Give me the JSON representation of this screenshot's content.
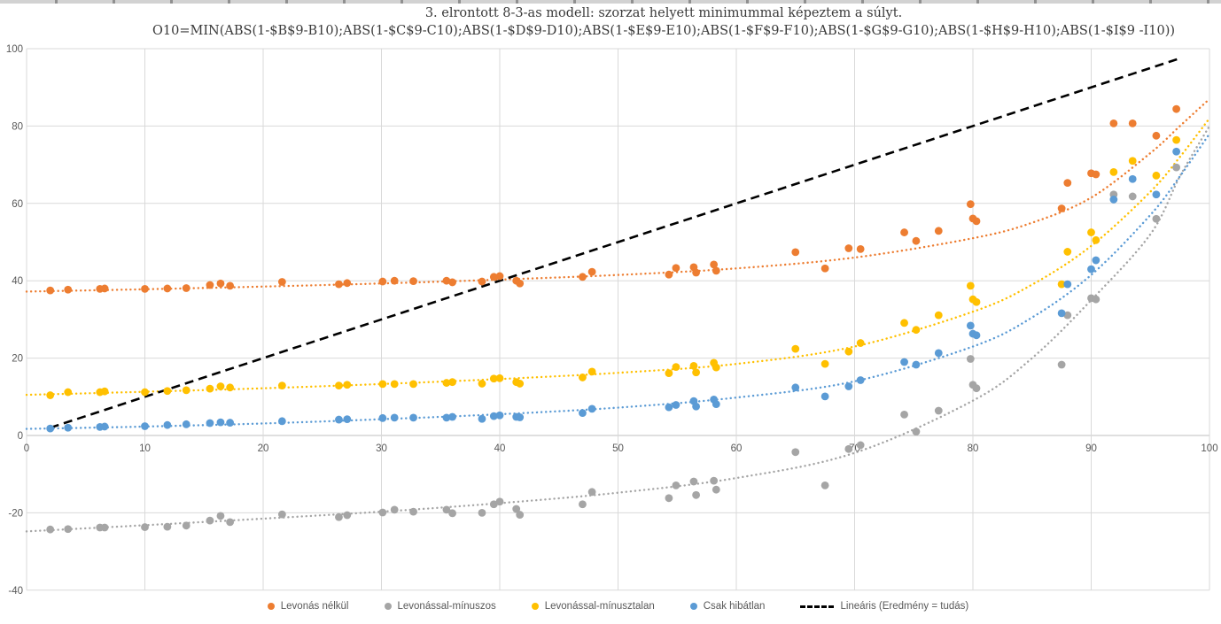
{
  "title": {
    "line1": "3. elrontott 8-3-as modell: szorzat helyett minimummal képeztem a súlyt.",
    "line2": "O10=MIN(ABS(1-$B$9-B10);ABS(1-$C$9-C10);ABS(1-$D$9-D10);ABS(1-$E$9-E10);ABS(1-$F$9-F10);ABS(1-$G$9-G10);ABS(1-$H$9-H10);ABS(1-$I$9 -I10))"
  },
  "colors": {
    "orange": "#ED7D31",
    "gray": "#A5A5A5",
    "yellow": "#FFC000",
    "blue": "#5B9BD5",
    "black": "#000000",
    "gridline": "#D9D9D9",
    "axis_line": "#BFBFBF",
    "axis_text": "#595959"
  },
  "legend": [
    {
      "label": "Levonás nélkül",
      "color": "#ED7D31",
      "marker": "dot"
    },
    {
      "label": "Levonással-mínuszos",
      "color": "#A5A5A5",
      "marker": "dot"
    },
    {
      "label": "Levonással-mínusztalan",
      "color": "#FFC000",
      "marker": "dot"
    },
    {
      "label": "Csak hibátlan",
      "color": "#5B9BD5",
      "marker": "dot"
    },
    {
      "label": "Lineáris (Eredmény = tudás)",
      "color": "#000000",
      "marker": "dash"
    }
  ],
  "chart_data": {
    "type": "scatter",
    "grid": true,
    "legend_position": "bottom",
    "xlim": [
      0,
      100
    ],
    "ylim": [
      -40,
      100
    ],
    "x_ticks": [
      0,
      10,
      20,
      30,
      40,
      50,
      60,
      70,
      80,
      90,
      100
    ],
    "y_ticks": [
      -40,
      -20,
      0,
      20,
      40,
      60,
      80,
      100
    ],
    "x": [
      2,
      3.5,
      6.2,
      6.6,
      10,
      11.9,
      13.5,
      15.5,
      16.4,
      17.2,
      21.6,
      26.4,
      27.1,
      30.1,
      31.1,
      32.7,
      35.5,
      36,
      38.5,
      39.5,
      40,
      41.4,
      41.7,
      47,
      47.8,
      54.3,
      54.9,
      56.4,
      56.6,
      58.1,
      58.3,
      65,
      67.5,
      69.5,
      70.5,
      74.2,
      75.2,
      77.1,
      79.8,
      80,
      80.3,
      87.5,
      88,
      90,
      90.4,
      91.9,
      93.5,
      95.5,
      97.2
    ],
    "series": [
      {
        "name": "Levonás nélkül",
        "color": "#ED7D31",
        "values": [
          37.5,
          37.7,
          37.9,
          38,
          37.9,
          38,
          38.1,
          38.9,
          39.3,
          38.7,
          39.7,
          39.1,
          39.4,
          39.8,
          40,
          39.9,
          40,
          39.6,
          39.8,
          41,
          41.2,
          40,
          39.3,
          41,
          42.3,
          41.6,
          43.3,
          43.5,
          42.1,
          44.2,
          42.6,
          47.4,
          43.2,
          48.4,
          48.2,
          52.5,
          50.3,
          52.9,
          59.8,
          56.1,
          55.4,
          58.7,
          65.3,
          67.8,
          67.5,
          80.7,
          80.7,
          77.5,
          84.4
        ],
        "trend": [
          [
            0,
            37.2
          ],
          [
            10,
            37.8
          ],
          [
            20,
            38.5
          ],
          [
            30,
            39.3
          ],
          [
            40,
            40.3
          ],
          [
            50,
            41.5
          ],
          [
            60,
            43.2
          ],
          [
            70,
            46
          ],
          [
            80,
            51
          ],
          [
            85,
            55
          ],
          [
            90,
            61.5
          ],
          [
            95,
            73
          ],
          [
            97.5,
            80
          ],
          [
            100,
            87
          ]
        ]
      },
      {
        "name": "Levonással-mínuszos",
        "color": "#A5A5A5",
        "values": [
          -24.3,
          -24.2,
          -23.8,
          -23.8,
          -23.7,
          -23.6,
          -23.3,
          -22,
          -20.8,
          -22.4,
          -20.4,
          -21.1,
          -20.6,
          -19.9,
          -19.2,
          -19.7,
          -19.2,
          -20.1,
          -20,
          -17.8,
          -17.1,
          -19,
          -20.5,
          -17.8,
          -14.6,
          -16.2,
          -12.9,
          -11.9,
          -15.4,
          -11.7,
          -14,
          -4.3,
          -12.9,
          -3.5,
          -2.5,
          5.4,
          1,
          6.4,
          19.8,
          13.1,
          12.2,
          18.3,
          31.1,
          35.5,
          35.2,
          62.3,
          61.8,
          56,
          69.3
        ],
        "trend": [
          [
            0,
            -24.8
          ],
          [
            10,
            -23.2
          ],
          [
            20,
            -21.5
          ],
          [
            30,
            -19.7
          ],
          [
            40,
            -17.5
          ],
          [
            50,
            -14.8
          ],
          [
            60,
            -11
          ],
          [
            70,
            -4.5
          ],
          [
            80,
            9
          ],
          [
            85,
            20
          ],
          [
            90,
            35
          ],
          [
            95,
            52
          ],
          [
            97.5,
            67
          ],
          [
            100,
            80
          ]
        ]
      },
      {
        "name": "Levonással-mínusztalan",
        "color": "#FFC000",
        "values": [
          10.4,
          11.2,
          11.2,
          11.4,
          11.2,
          11.5,
          11.7,
          12.1,
          12.7,
          12.4,
          12.9,
          12.9,
          13.1,
          13.3,
          13.3,
          13.3,
          13.6,
          13.8,
          13.4,
          14.7,
          14.8,
          13.8,
          13.4,
          15,
          16.5,
          16.1,
          17.7,
          18,
          16.3,
          18.8,
          17.6,
          22.4,
          18.5,
          21.7,
          23.9,
          29.1,
          27.3,
          31.1,
          38.7,
          35.2,
          34.5,
          39.1,
          47.5,
          52.5,
          50.5,
          68.1,
          71,
          67.2,
          76.4
        ],
        "trend": [
          [
            0,
            10.5
          ],
          [
            10,
            11.3
          ],
          [
            20,
            12.2
          ],
          [
            30,
            13.3
          ],
          [
            40,
            14.6
          ],
          [
            50,
            16.2
          ],
          [
            60,
            18.5
          ],
          [
            70,
            23
          ],
          [
            80,
            32
          ],
          [
            85,
            39
          ],
          [
            90,
            49
          ],
          [
            95,
            63
          ],
          [
            97.5,
            72
          ],
          [
            100,
            82
          ]
        ]
      },
      {
        "name": "Csak hibátlan",
        "color": "#5B9BD5",
        "values": [
          1.8,
          2,
          2.2,
          2.3,
          2.4,
          2.7,
          2.9,
          3.2,
          3.4,
          3.3,
          3.7,
          4.1,
          4.2,
          4.5,
          4.6,
          4.6,
          4.6,
          4.8,
          4.3,
          5,
          5.2,
          4.8,
          4.7,
          5.8,
          6.9,
          7.3,
          7.9,
          8.9,
          7.5,
          9.3,
          8.1,
          12.4,
          10.1,
          12.7,
          14.3,
          19,
          18.3,
          21.3,
          28.4,
          26.3,
          25.9,
          31.6,
          39.1,
          43,
          45.3,
          61,
          66.3,
          62.3,
          73.4
        ],
        "trend": [
          [
            0,
            1.7
          ],
          [
            10,
            2.3
          ],
          [
            20,
            3.1
          ],
          [
            30,
            4.2
          ],
          [
            40,
            5.5
          ],
          [
            50,
            7.2
          ],
          [
            60,
            9.8
          ],
          [
            70,
            14
          ],
          [
            80,
            23
          ],
          [
            85,
            30.5
          ],
          [
            90,
            41.5
          ],
          [
            95,
            57
          ],
          [
            97.5,
            67
          ],
          [
            100,
            78
          ]
        ]
      }
    ],
    "reference_line": {
      "name": "Lineáris (Eredmény = tudás)",
      "style": "dashed",
      "color": "#000000",
      "points": [
        [
          2,
          2
        ],
        [
          97.5,
          97.5
        ]
      ]
    }
  }
}
